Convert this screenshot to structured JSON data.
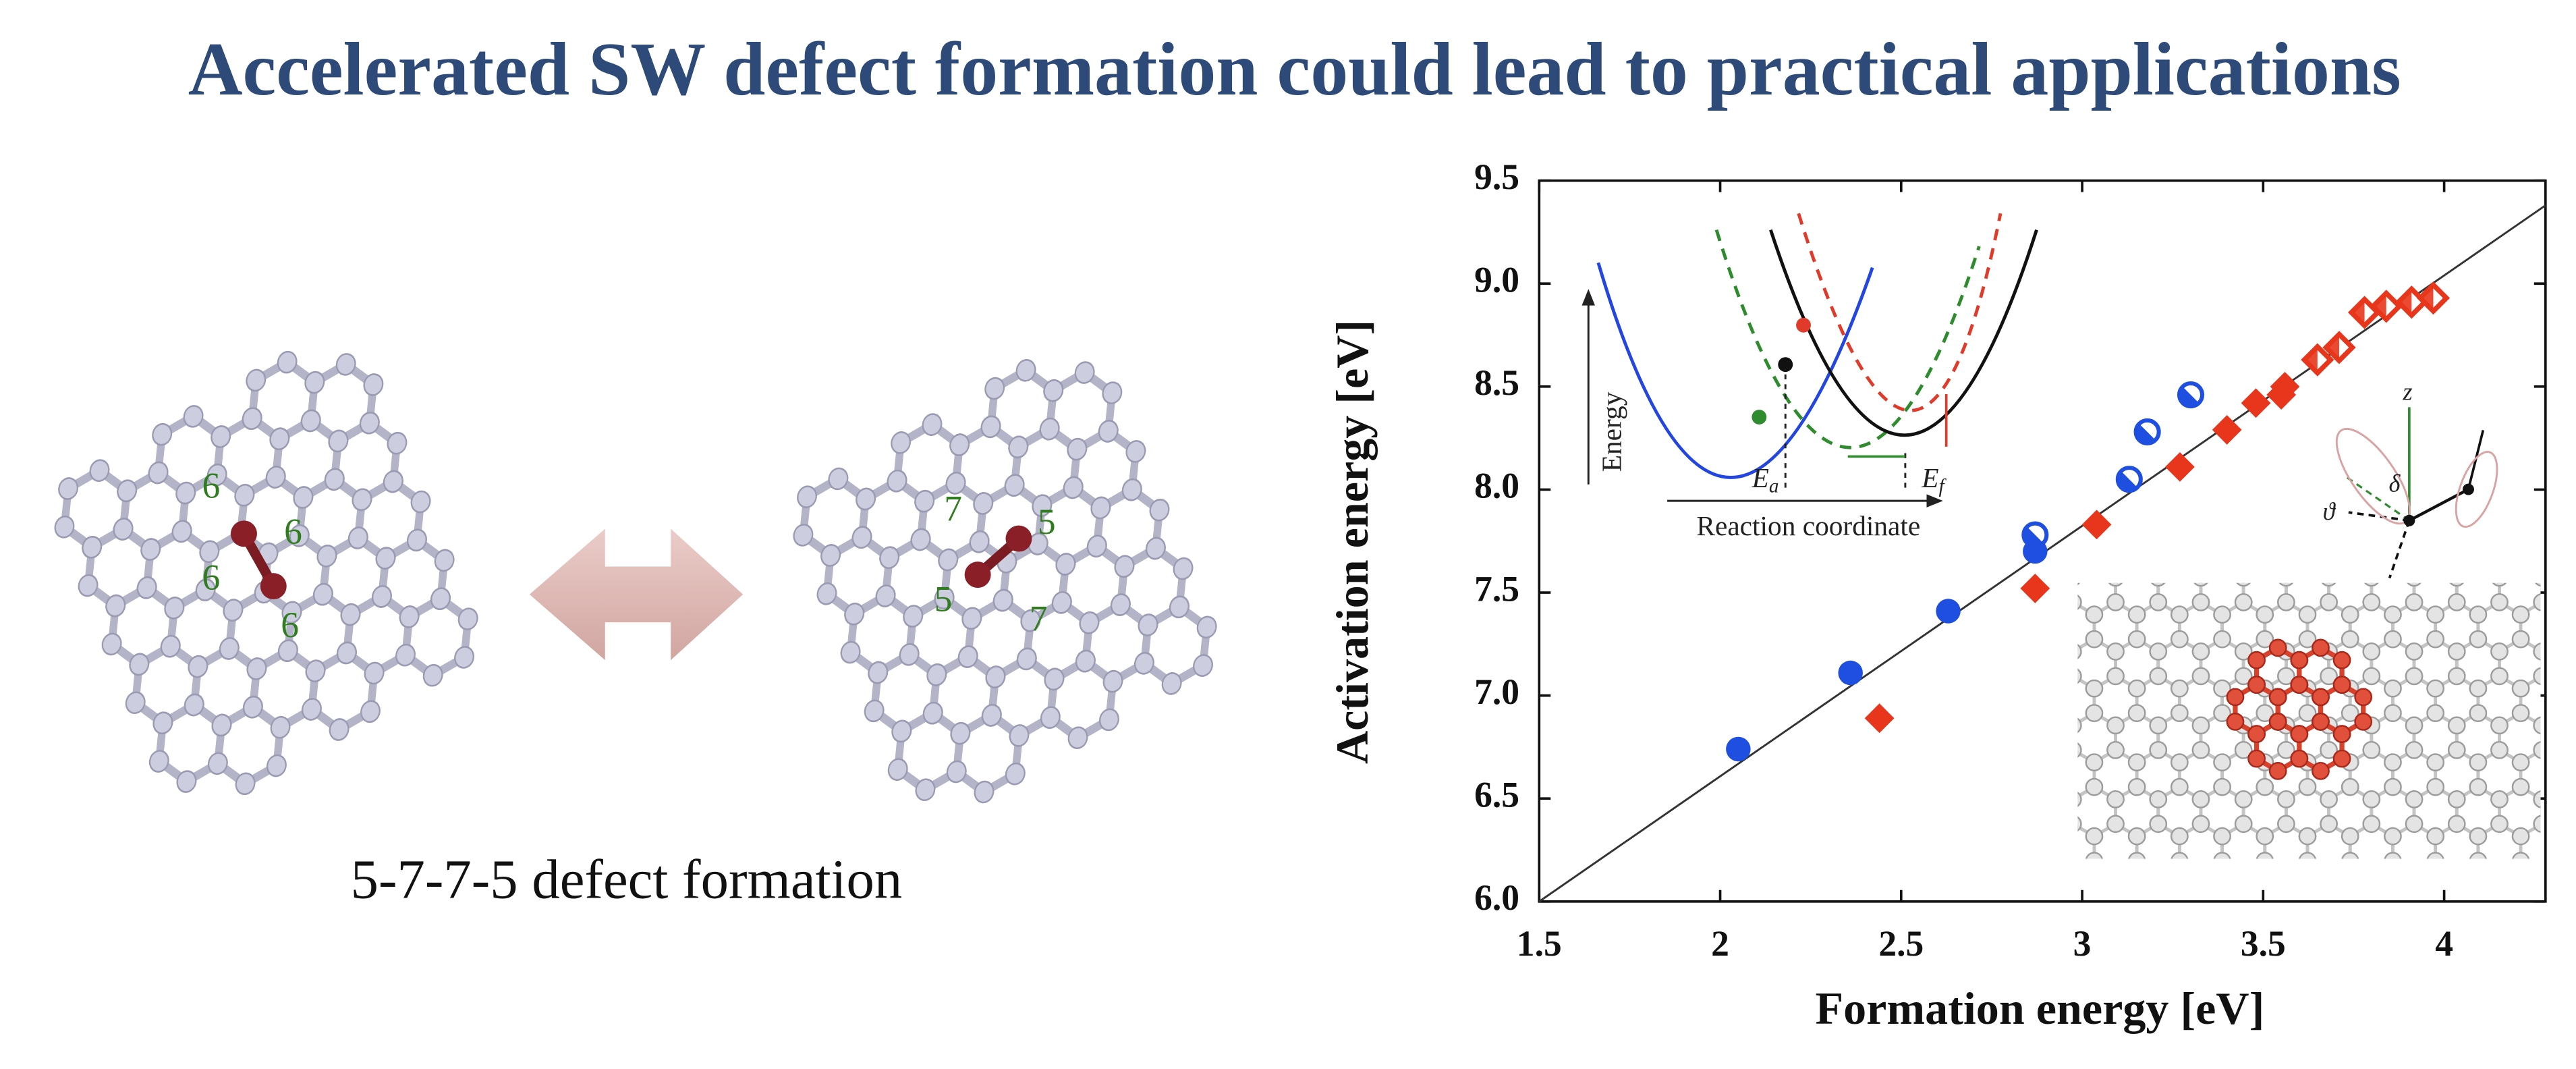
{
  "slide": {
    "title": "Accelerated SW defect formation could lead to practical applications",
    "caption": "5-7-7-5 defect formation",
    "pristine_ring_labels": [
      "6",
      "6",
      "6",
      "6"
    ],
    "defect_ring_labels": [
      "7",
      "5",
      "5",
      "7"
    ]
  },
  "insets": {
    "energy_axis": "Energy",
    "reaction_axis": "Reaction coordinate",
    "activation": {
      "symbol": "E",
      "subscript": "a"
    },
    "formation": {
      "symbol": "E",
      "subscript": "f"
    },
    "angles": [
      "z",
      "δ",
      "ϑ"
    ]
  },
  "chart_data": {
    "type": "scatter",
    "xlabel": "Formation energy [eV]",
    "ylabel": "Activation energy [eV]",
    "xlim": [
      1.5,
      4.28
    ],
    "ylim": [
      6.0,
      9.5
    ],
    "xticks": [
      1.5,
      2,
      2.5,
      3,
      3.5,
      4
    ],
    "yticks": [
      {
        "value": 6,
        "label": "6.0"
      },
      6.5,
      {
        "value": 7,
        "label": "7.0"
      },
      7.5,
      {
        "value": 8,
        "label": "8.0"
      },
      8.5,
      {
        "value": 9,
        "label": "9.0"
      },
      9.5
    ],
    "series": [
      {
        "color": "#1f4fe0",
        "marker": "circle",
        "x": [
          2.05,
          2.36,
          2.63,
          2.87
        ],
        "values": [
          6.74,
          7.11,
          7.41,
          7.7
        ]
      },
      {
        "color": "#1f4fe0",
        "marker": "half-circle",
        "x": [
          2.87,
          3.13,
          3.18,
          3.3
        ],
        "values": [
          7.78,
          8.05,
          8.28,
          8.46
        ]
      },
      {
        "color": "#e8361c",
        "marker": "diamond",
        "x": [
          2.44,
          2.87,
          3.04,
          3.27,
          3.4,
          3.48,
          3.55,
          3.56
        ],
        "values": [
          6.89,
          7.52,
          7.83,
          8.11,
          8.29,
          8.42,
          8.46,
          8.5
        ]
      },
      {
        "color": "#e8361c",
        "marker": "half-diamond",
        "x": [
          3.65,
          3.71,
          3.78,
          3.84,
          3.91,
          3.97
        ],
        "values": [
          8.63,
          8.69,
          8.86,
          8.89,
          8.91,
          8.93
        ]
      },
      {
        "type": "line",
        "color": "#333333",
        "x": [
          1.5,
          4.28
        ],
        "values": [
          6.0,
          9.38
        ]
      }
    ]
  }
}
